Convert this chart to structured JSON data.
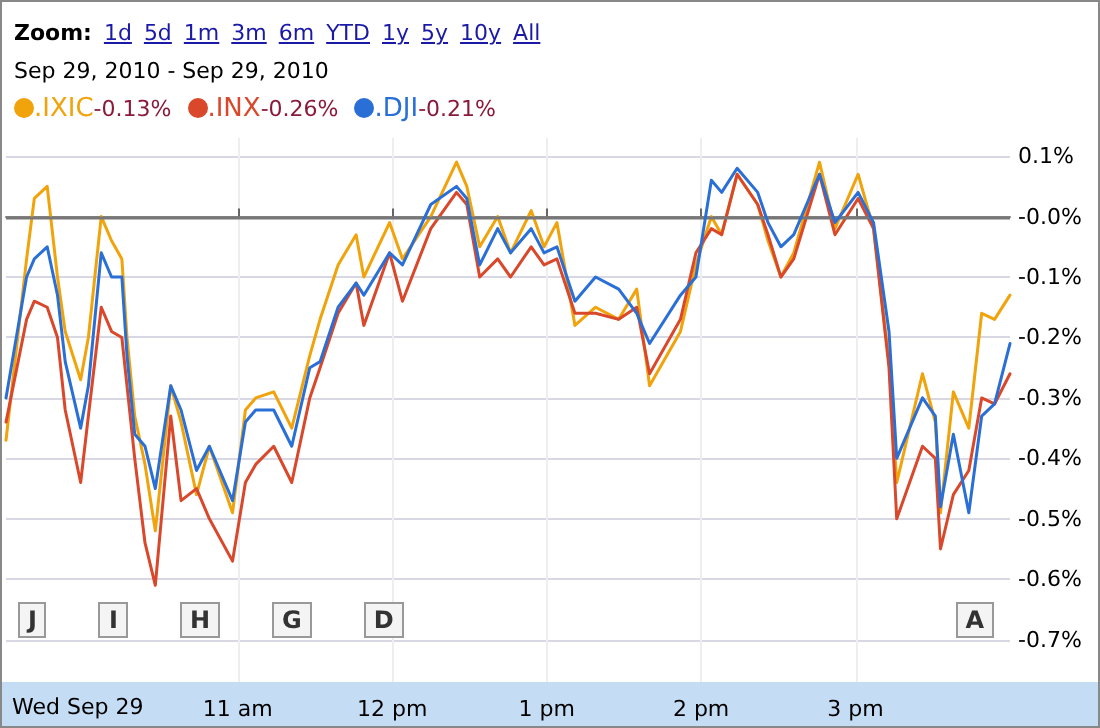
{
  "chart_data": {
    "type": "line",
    "title": "Zoom: 1d 5d 1m 3m 6m YTD 1y 5y 10y All",
    "xlabel": "Wed Sep 29",
    "subtitle": "Sep 29, 2010  -  Sep 29, 2010",
    "x": [
      "2010-09-29T09:30",
      "2010-09-29T09:38",
      "2010-09-29T09:41",
      "2010-09-29T09:46",
      "2010-09-29T09:50",
      "2010-09-29T09:53",
      "2010-09-29T09:59",
      "2010-09-29T10:02",
      "2010-09-29T10:07",
      "2010-09-29T10:11",
      "2010-09-29T10:15",
      "2010-09-29T10:17",
      "2010-09-29T10:20",
      "2010-09-29T10:24",
      "2010-09-29T10:28",
      "2010-09-29T10:34",
      "2010-09-29T10:38",
      "2010-09-29T10:44",
      "2010-09-29T10:49",
      "2010-09-29T10:58",
      "2010-09-29T11:03",
      "2010-09-29T11:07",
      "2010-09-29T11:14",
      "2010-09-29T11:21",
      "2010-09-29T11:28",
      "2010-09-29T11:32",
      "2010-09-29T11:39",
      "2010-09-29T11:46",
      "2010-09-29T11:49",
      "2010-09-29T11:59",
      "2010-09-29T12:04",
      "2010-09-29T12:15",
      "2010-09-29T12:25",
      "2010-09-29T12:29",
      "2010-09-29T12:34",
      "2010-09-29T12:41",
      "2010-09-29T12:46",
      "2010-09-29T12:54",
      "2010-09-29T12:59",
      "2010-09-29T13:04",
      "2010-09-29T13:11",
      "2010-09-29T13:19",
      "2010-09-29T13:28",
      "2010-09-29T13:35",
      "2010-09-29T13:40",
      "2010-09-29T13:52",
      "2010-09-29T13:58",
      "2010-09-29T14:04",
      "2010-09-29T14:08",
      "2010-09-29T14:14",
      "2010-09-29T14:22",
      "2010-09-29T14:26",
      "2010-09-29T14:31",
      "2010-09-29T14:36",
      "2010-09-29T14:46",
      "2010-09-29T14:52",
      "2010-09-29T15:01",
      "2010-09-29T15:07",
      "2010-09-29T15:13",
      "2010-09-29T15:16",
      "2010-09-29T15:26",
      "2010-09-29T15:31",
      "2010-09-29T15:33",
      "2010-09-29T15:38",
      "2010-09-29T15:44",
      "2010-09-29T15:49",
      "2010-09-29T15:54",
      "2010-09-29T16:00"
    ],
    "series": [
      {
        "name": ".IXIC",
        "color": "#f0a30a",
        "values": [
          -0.37,
          -0.07,
          0.03,
          0.05,
          -0.1,
          -0.19,
          -0.27,
          -0.2,
          0.0,
          -0.04,
          -0.07,
          -0.2,
          -0.33,
          -0.41,
          -0.52,
          -0.28,
          -0.34,
          -0.46,
          -0.38,
          -0.49,
          -0.32,
          -0.3,
          -0.29,
          -0.35,
          -0.23,
          -0.17,
          -0.08,
          -0.03,
          -0.1,
          -0.01,
          -0.07,
          0.0,
          0.09,
          0.05,
          -0.05,
          0.0,
          -0.06,
          0.01,
          -0.05,
          -0.01,
          -0.18,
          -0.15,
          -0.17,
          -0.12,
          -0.28,
          -0.19,
          -0.08,
          0.0,
          -0.03,
          0.07,
          0.02,
          -0.04,
          -0.1,
          -0.06,
          0.09,
          -0.02,
          0.07,
          -0.02,
          -0.24,
          -0.44,
          -0.26,
          -0.34,
          -0.49,
          -0.29,
          -0.35,
          -0.16,
          -0.17,
          -0.13
        ]
      },
      {
        "name": ".INX",
        "color": "#d9482b",
        "values": [
          -0.34,
          -0.17,
          -0.14,
          -0.15,
          -0.2,
          -0.32,
          -0.44,
          -0.33,
          -0.15,
          -0.19,
          -0.2,
          -0.28,
          -0.4,
          -0.54,
          -0.61,
          -0.33,
          -0.47,
          -0.45,
          -0.5,
          -0.57,
          -0.44,
          -0.41,
          -0.38,
          -0.44,
          -0.3,
          -0.25,
          -0.16,
          -0.11,
          -0.18,
          -0.06,
          -0.14,
          -0.02,
          0.04,
          0.02,
          -0.1,
          -0.07,
          -0.1,
          -0.05,
          -0.08,
          -0.07,
          -0.16,
          -0.16,
          -0.17,
          -0.15,
          -0.26,
          -0.17,
          -0.06,
          -0.02,
          -0.03,
          0.07,
          0.02,
          -0.03,
          -0.1,
          -0.07,
          0.07,
          -0.03,
          0.03,
          -0.02,
          -0.25,
          -0.5,
          -0.38,
          -0.4,
          -0.55,
          -0.46,
          -0.42,
          -0.3,
          -0.31,
          -0.26
        ]
      },
      {
        "name": ".DJI",
        "color": "#2a6fd6",
        "values": [
          -0.3,
          -0.1,
          -0.07,
          -0.05,
          -0.13,
          -0.24,
          -0.35,
          -0.28,
          -0.06,
          -0.1,
          -0.1,
          -0.23,
          -0.36,
          -0.38,
          -0.45,
          -0.28,
          -0.32,
          -0.42,
          -0.38,
          -0.47,
          -0.34,
          -0.32,
          -0.32,
          -0.38,
          -0.25,
          -0.24,
          -0.15,
          -0.11,
          -0.13,
          -0.06,
          -0.08,
          0.02,
          0.05,
          0.03,
          -0.08,
          -0.02,
          -0.06,
          -0.02,
          -0.06,
          -0.05,
          -0.14,
          -0.1,
          -0.12,
          -0.16,
          -0.21,
          -0.13,
          -0.1,
          0.06,
          0.04,
          0.08,
          0.04,
          -0.01,
          -0.05,
          -0.03,
          0.07,
          -0.01,
          0.04,
          -0.01,
          -0.19,
          -0.4,
          -0.3,
          -0.33,
          -0.48,
          -0.36,
          -0.49,
          -0.33,
          -0.31,
          -0.21
        ]
      }
    ],
    "xlim": [
      "2010-09-29T09:30",
      "2010-09-29T16:00"
    ],
    "xticks": [
      {
        "value": "2010-09-29T11:00",
        "label": "11 am"
      },
      {
        "value": "2010-09-29T12:00",
        "label": "12 pm"
      },
      {
        "value": "2010-09-29T13:00",
        "label": "1 pm"
      },
      {
        "value": "2010-09-29T14:00",
        "label": "2 pm"
      },
      {
        "value": "2010-09-29T15:00",
        "label": "3 pm"
      }
    ],
    "ylim": [
      -0.77,
      0.13
    ],
    "yticks": [
      {
        "value": 0.1,
        "label": "0.1%"
      },
      {
        "value": 0,
        "label": "-0.0%"
      },
      {
        "value": -0.1,
        "label": "-0.1%"
      },
      {
        "value": -0.2,
        "label": "-0.2%"
      },
      {
        "value": -0.3,
        "label": "-0.3%"
      },
      {
        "value": -0.4,
        "label": "-0.4%"
      },
      {
        "value": -0.5,
        "label": "-0.5%"
      },
      {
        "value": -0.6,
        "label": "-0.6%"
      },
      {
        "value": -0.7,
        "label": "-0.7%"
      }
    ],
    "ref_lines": [
      {
        "axis": "y",
        "value": 0,
        "color": "#777777"
      }
    ],
    "annotations": [
      "J",
      "I",
      "H",
      "G",
      "D",
      "A",
      "-0.13%",
      "-0.26%",
      "-0.21%"
    ],
    "grid": true,
    "legend": "top left",
    "marker": "none",
    "line_style": "solid"
  }
}
